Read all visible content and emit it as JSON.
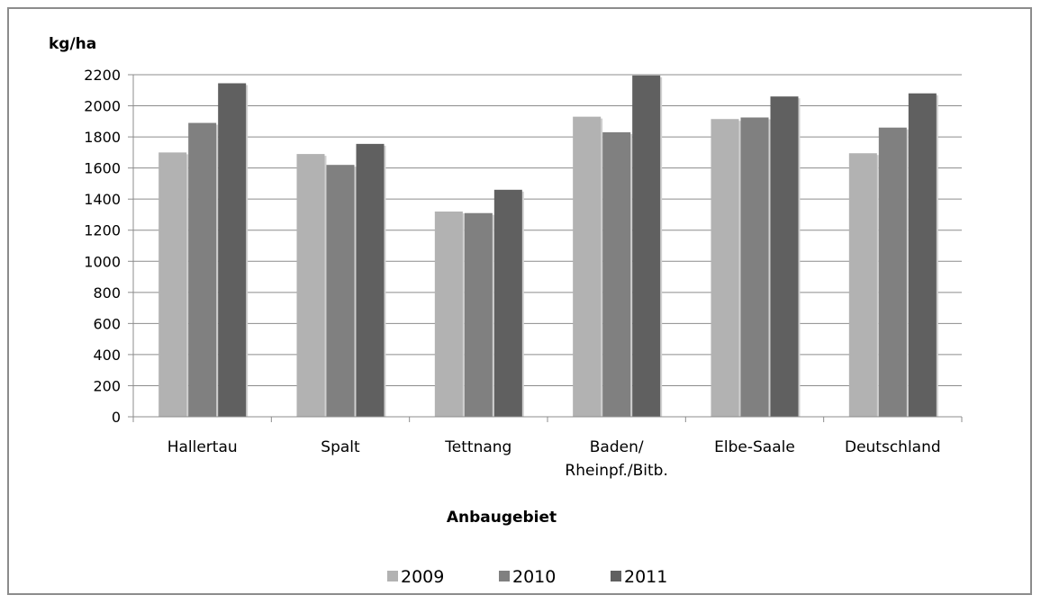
{
  "chart_data": {
    "type": "bar",
    "ylabel": "kg/ha",
    "xlabel": "Anbaugebiet",
    "categories": [
      [
        "Hallertau"
      ],
      [
        "Spalt"
      ],
      [
        "Tettnang"
      ],
      [
        "Baden/",
        "Rheinpf./Bitb."
      ],
      [
        "Elbe-Saale"
      ],
      [
        "Deutschland"
      ]
    ],
    "series": [
      {
        "name": "2009",
        "color": "#b2b2b2",
        "values": [
          1700,
          1690,
          1320,
          1930,
          1915,
          1695
        ]
      },
      {
        "name": "2010",
        "color": "#808080",
        "values": [
          1890,
          1620,
          1310,
          1830,
          1925,
          1860
        ]
      },
      {
        "name": "2011",
        "color": "#606060",
        "values": [
          2145,
          1755,
          1460,
          2195,
          2060,
          2080
        ]
      }
    ],
    "ylim": [
      0,
      2200
    ],
    "yticks": [
      0,
      200,
      400,
      600,
      800,
      1000,
      1200,
      1400,
      1600,
      1800,
      2000,
      2200
    ],
    "grid": true,
    "legend_position": "bottom"
  }
}
